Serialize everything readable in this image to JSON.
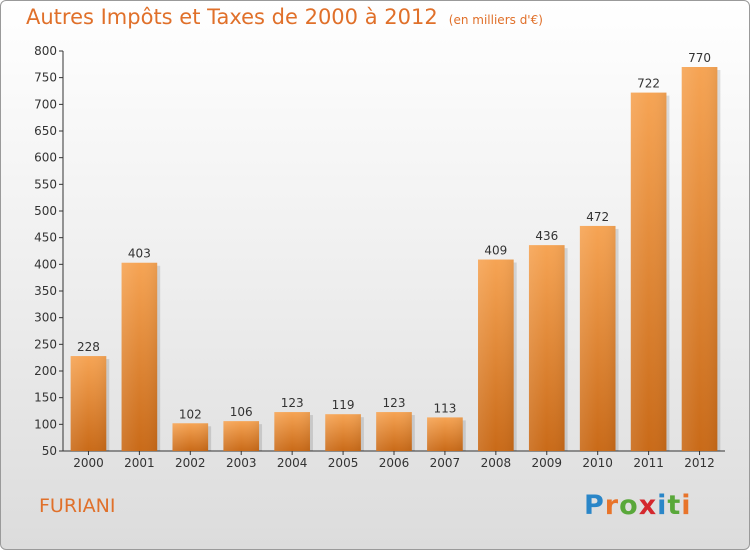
{
  "header": {
    "title": "Autres Impôts et Taxes de 2000 à 2012",
    "unit": "(en milliers d'€)"
  },
  "footer": {
    "commune": "FURIANI",
    "logo_letters": [
      "P",
      "r",
      "o",
      "x",
      "i",
      "t",
      "i"
    ],
    "logo_colors": [
      "#2a86c8",
      "#e8742a",
      "#59a83a",
      "#d4282e",
      "#2a86c8",
      "#59a83a",
      "#e8742a"
    ]
  },
  "colors": {
    "accent": "#e0702a",
    "bar_light": "#f6a454",
    "bar_dark": "#c96a18"
  },
  "chart_data": {
    "type": "bar",
    "title": "Autres Impôts et Taxes de 2000 à 2012",
    "subtitle": "(en milliers d'€)",
    "xlabel": "",
    "ylabel": "",
    "categories": [
      "2000",
      "2001",
      "2002",
      "2003",
      "2004",
      "2005",
      "2006",
      "2007",
      "2008",
      "2009",
      "2010",
      "2011",
      "2012"
    ],
    "values": [
      228,
      403,
      102,
      106,
      123,
      119,
      123,
      113,
      409,
      436,
      472,
      722,
      770
    ],
    "ylim": [
      50,
      800
    ],
    "yticks": [
      50,
      100,
      150,
      200,
      250,
      300,
      350,
      400,
      450,
      500,
      550,
      600,
      650,
      700,
      750,
      800
    ],
    "grid": false,
    "legend": "none"
  }
}
